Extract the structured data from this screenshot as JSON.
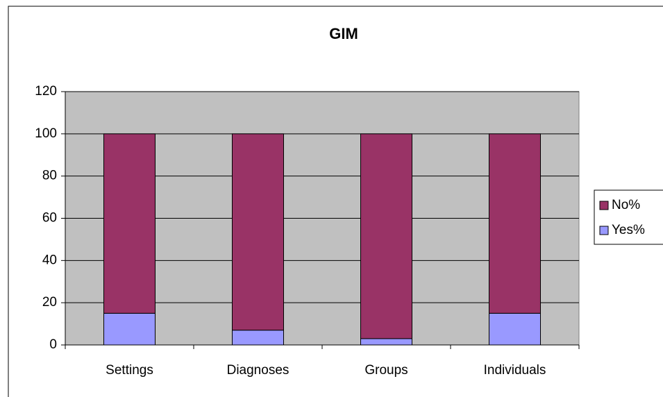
{
  "chart_data": {
    "type": "stacked_bar",
    "title": "GIM",
    "categories": [
      "Settings",
      "Diagnoses",
      "Groups",
      "Individuals"
    ],
    "series": [
      {
        "name": "Yes%",
        "color": "#9999ff",
        "values": [
          15,
          7,
          3,
          15
        ]
      },
      {
        "name": "No%",
        "color": "#993366",
        "values": [
          85,
          93,
          97,
          85
        ]
      }
    ],
    "ylim": [
      0,
      120
    ],
    "yticks": [
      0,
      20,
      40,
      60,
      80,
      100,
      120
    ],
    "grid": true,
    "legend": "right"
  }
}
